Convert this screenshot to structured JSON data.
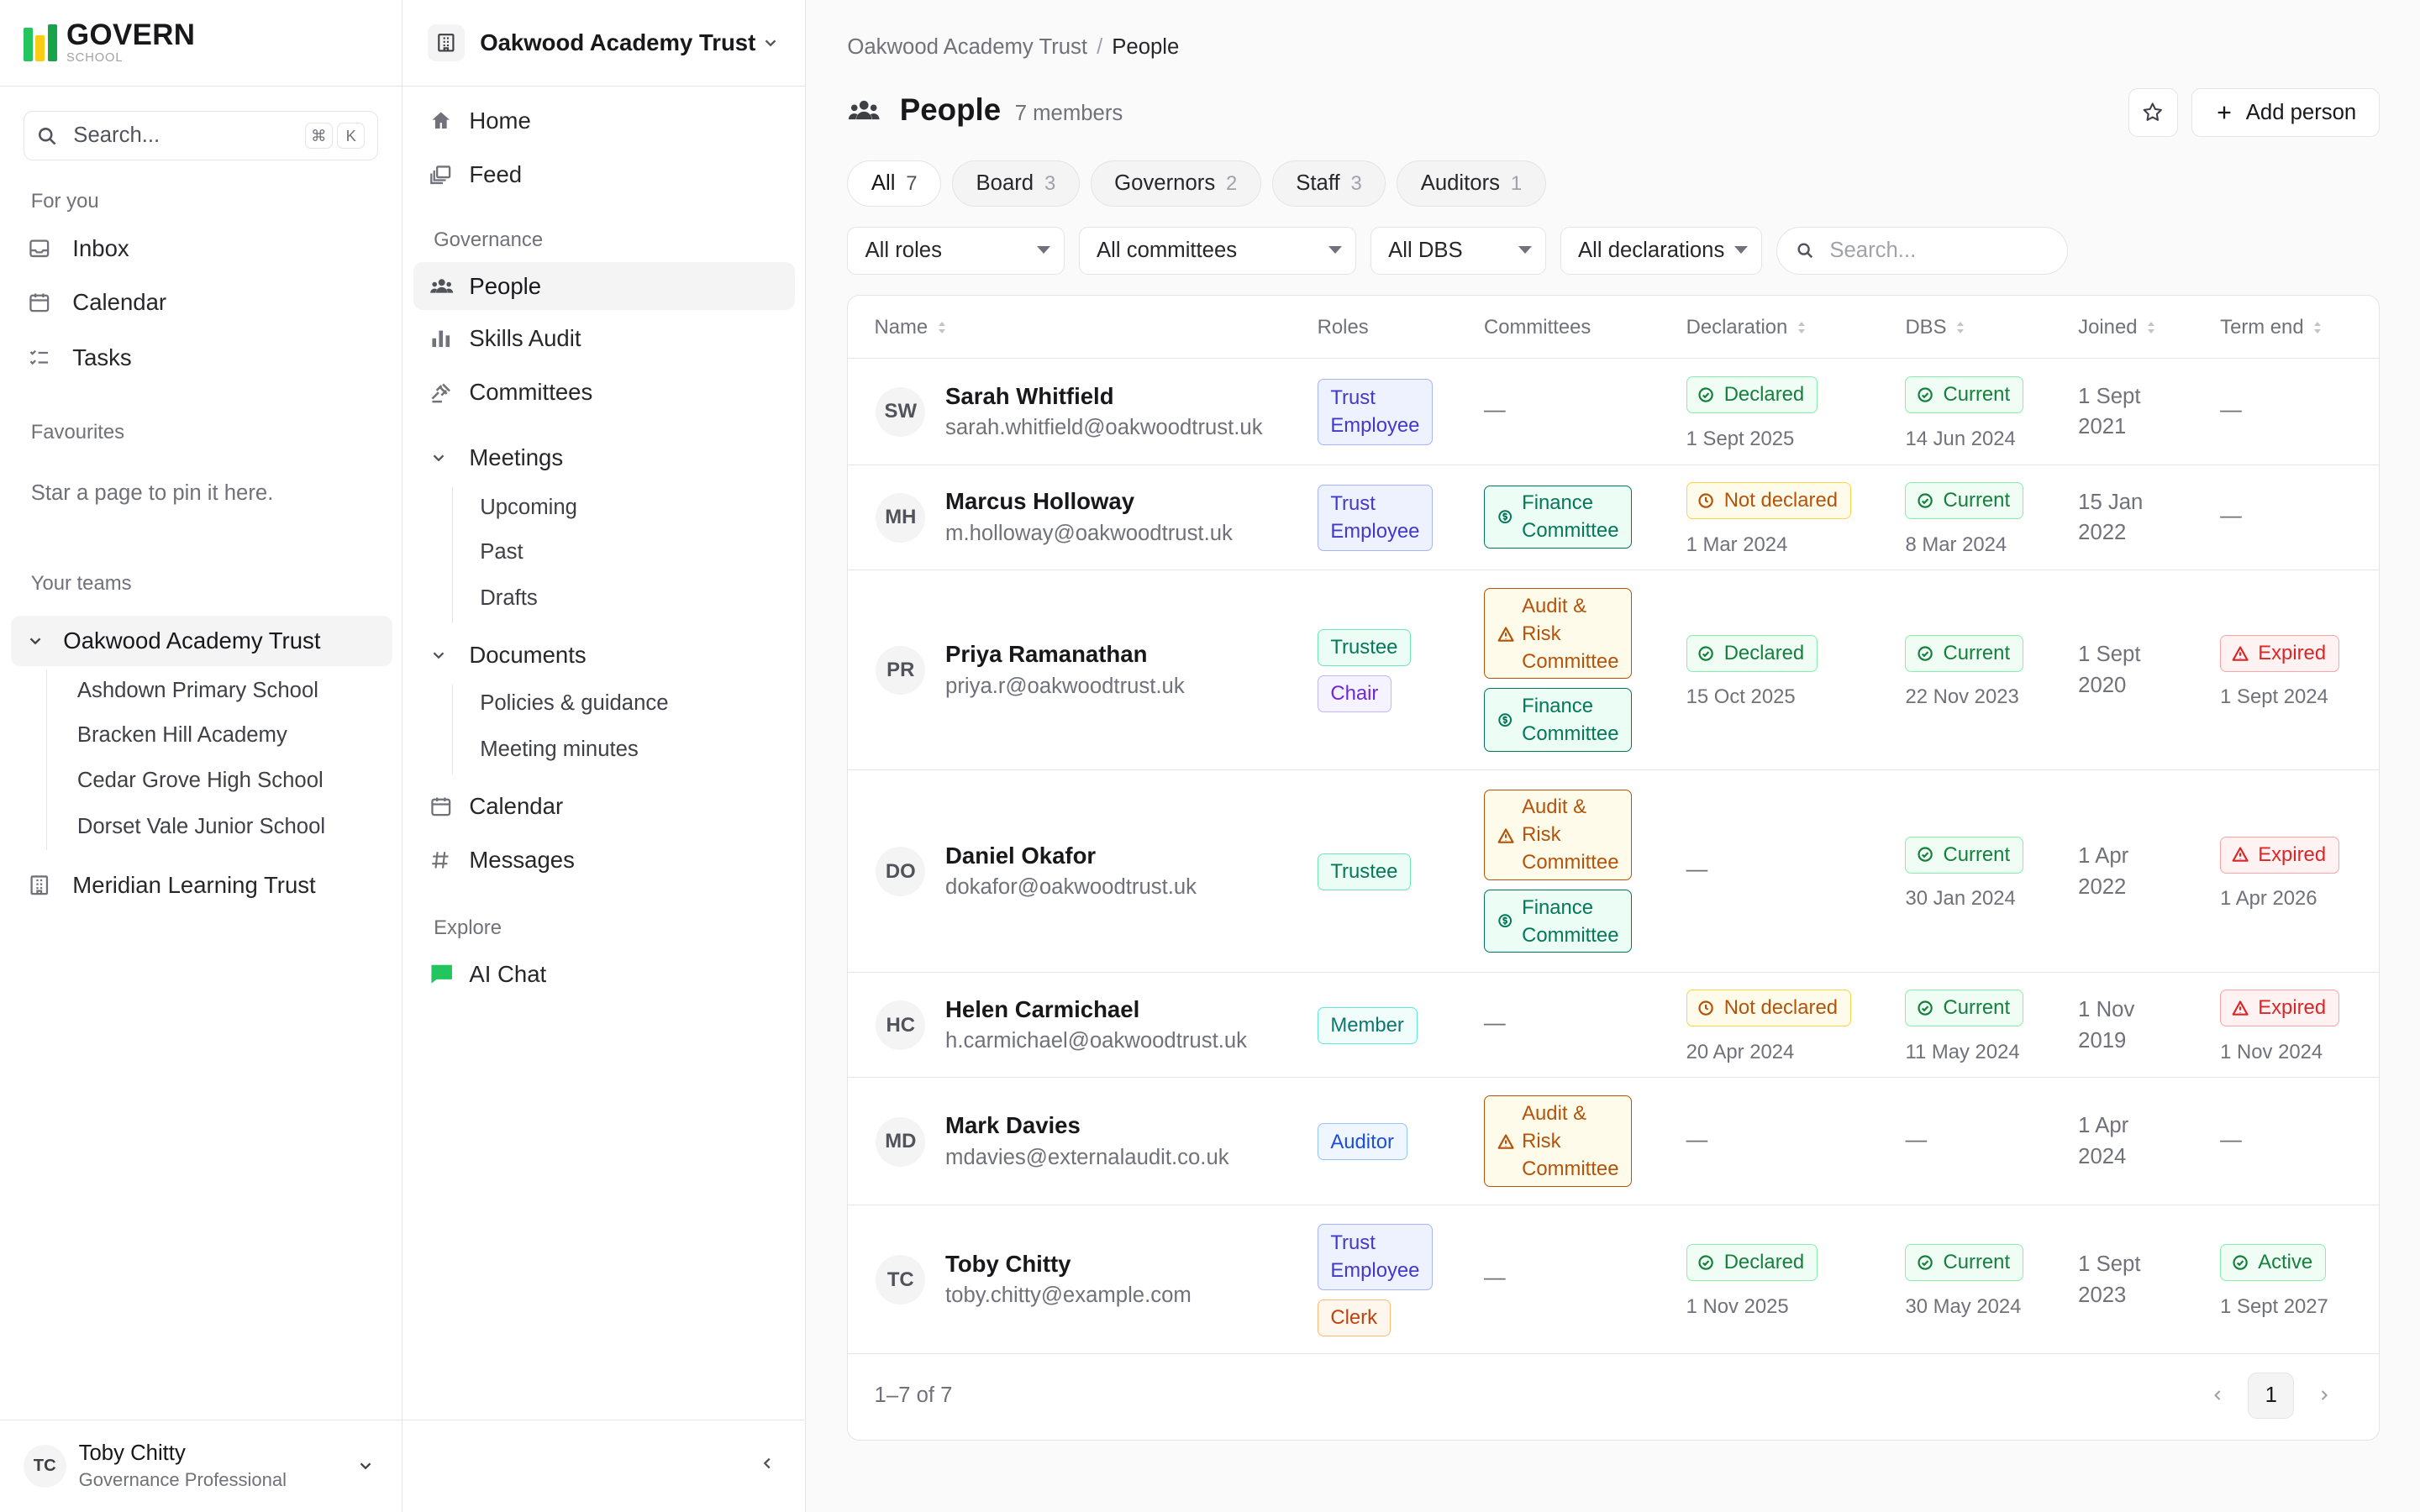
{
  "app": {
    "logo_title": "GOVERN",
    "logo_subtitle": "SCHOOL",
    "brand_colors": [
      "#22c55e",
      "#facc15",
      "#16a34a"
    ]
  },
  "sidebar": {
    "search_placeholder": "Search...",
    "shortcut_keys": [
      "⌘",
      "K"
    ],
    "for_you_label": "For you",
    "for_you_items": [
      {
        "label": "Inbox",
        "icon": "inbox-icon"
      },
      {
        "label": "Calendar",
        "icon": "calendar-icon"
      },
      {
        "label": "Tasks",
        "icon": "tasks-icon"
      }
    ],
    "favourites_label": "Favourites",
    "favourites_hint": "Star a page to pin it here.",
    "teams_label": "Your teams",
    "active_team": "Oakwood Academy Trust",
    "schools": [
      "Ashdown Primary School",
      "Bracken Hill Academy",
      "Cedar Grove High School",
      "Dorset Vale Junior School"
    ],
    "other_team": "Meridian Learning Trust",
    "user": {
      "initials": "TC",
      "name": "Toby Chitty",
      "role": "Governance Professional"
    }
  },
  "nav": {
    "org_name": "Oakwood Academy Trust",
    "home": "Home",
    "feed": "Feed",
    "governance_label": "Governance",
    "people": "People",
    "skills_audit": "Skills Audit",
    "committees": "Committees",
    "meetings": "Meetings",
    "meetings_sub": [
      "Upcoming",
      "Past",
      "Drafts"
    ],
    "documents": "Documents",
    "documents_sub": [
      "Policies & guidance",
      "Meeting minutes"
    ],
    "calendar": "Calendar",
    "messages": "Messages",
    "explore_label": "Explore",
    "ai_chat": "AI Chat"
  },
  "page": {
    "breadcrumb_parent": "Oakwood Academy Trust",
    "breadcrumb_sep": "/",
    "breadcrumb_current": "People",
    "title": "People",
    "member_count": "7 members",
    "add_button": "Add person",
    "tabs": [
      {
        "label": "All",
        "count": "7"
      },
      {
        "label": "Board",
        "count": "3"
      },
      {
        "label": "Governors",
        "count": "2"
      },
      {
        "label": "Staff",
        "count": "3"
      },
      {
        "label": "Auditors",
        "count": "1"
      }
    ],
    "filters": [
      "All roles",
      "All committees",
      "All DBS",
      "All declarations"
    ],
    "filter_search_placeholder": "Search..."
  },
  "table": {
    "columns": [
      "Name",
      "Roles",
      "Committees",
      "Declaration",
      "DBS",
      "Joined",
      "Term end"
    ],
    "dash": "—",
    "role_lines": {
      "trust_employee": [
        "Trust",
        "Employee"
      ],
      "trustee": [
        "Trustee"
      ],
      "chair": [
        "Chair"
      ],
      "member": [
        "Member"
      ],
      "auditor": [
        "Auditor"
      ],
      "clerk": [
        "Clerk"
      ]
    },
    "committee_lines": {
      "finance": [
        "Finance",
        "Committee"
      ],
      "audit": [
        "Audit &",
        "Risk",
        "Committee"
      ]
    },
    "rows": [
      {
        "initials": "SW",
        "name": "Sarah Whitfield",
        "email": "sarah.whitfield@oakwoodtrust.uk",
        "declaration": {
          "status": "Declared",
          "date": "1 Sept 2025"
        },
        "dbs": {
          "status": "Current",
          "date": "14 Jun 2024"
        },
        "joined": [
          "1 Sept",
          "2021"
        ],
        "term": null
      },
      {
        "initials": "MH",
        "name": "Marcus Holloway",
        "email": "m.holloway@oakwoodtrust.uk",
        "declaration": {
          "status": "Not declared",
          "date": "1 Mar 2024"
        },
        "dbs": {
          "status": "Current",
          "date": "8 Mar 2024"
        },
        "joined": [
          "15 Jan",
          "2022"
        ],
        "term": null
      },
      {
        "initials": "PR",
        "name": "Priya Ramanathan",
        "email": "priya.r@oakwoodtrust.uk",
        "declaration": {
          "status": "Declared",
          "date": "15 Oct 2025"
        },
        "dbs": {
          "status": "Current",
          "date": "22 Nov 2023"
        },
        "joined": [
          "1 Sept",
          "2020"
        ],
        "term": {
          "status": "Expired",
          "date": "1 Sept 2024"
        }
      },
      {
        "initials": "DO",
        "name": "Daniel Okafor",
        "email": "dokafor@oakwoodtrust.uk",
        "declaration": null,
        "dbs": {
          "status": "Current",
          "date": "30 Jan 2024"
        },
        "joined": [
          "1 Apr",
          "2022"
        ],
        "term": {
          "status": "Expired",
          "date": "1 Apr 2026"
        }
      },
      {
        "initials": "HC",
        "name": "Helen Carmichael",
        "email": "h.carmichael@oakwoodtrust.uk",
        "declaration": {
          "status": "Not declared",
          "date": "20 Apr 2024"
        },
        "dbs": {
          "status": "Current",
          "date": "11 May 2024"
        },
        "joined": [
          "1 Nov",
          "2019"
        ],
        "term": {
          "status": "Expired",
          "date": "1 Nov 2024"
        }
      },
      {
        "initials": "MD",
        "name": "Mark Davies",
        "email": "mdavies@externalaudit.co.uk",
        "declaration": null,
        "dbs": null,
        "joined": [
          "1 Apr",
          "2024"
        ],
        "term": null
      },
      {
        "initials": "TC",
        "name": "Toby Chitty",
        "email": "toby.chitty@example.com",
        "declaration": {
          "status": "Declared",
          "date": "1 Nov 2025"
        },
        "dbs": {
          "status": "Current",
          "date": "30 May 2024"
        },
        "joined": [
          "1 Sept",
          "2023"
        ],
        "term": {
          "status": "Active",
          "date": "1 Sept 2027"
        }
      }
    ],
    "footer_range": "1–7 of 7",
    "current_page": "1"
  }
}
